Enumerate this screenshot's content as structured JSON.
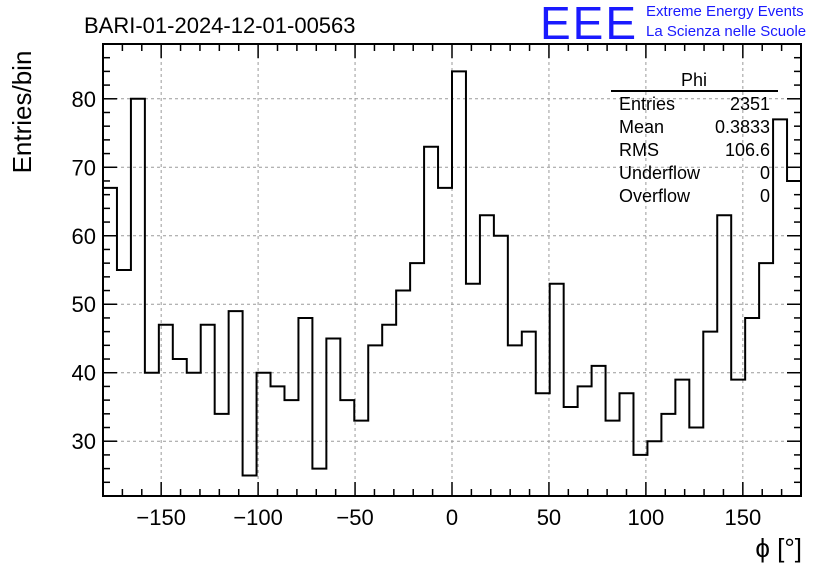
{
  "header": {
    "run_title": "BARI-01-2024-12-01-00563",
    "logo_mark": "EEE",
    "logo_line1": "Extreme Energy Events",
    "logo_line2": "La Scienza nelle Scuole"
  },
  "stats_box": {
    "title": "Phi",
    "rows": [
      {
        "label": "Entries",
        "value": "2351"
      },
      {
        "label": "Mean",
        "value": "0.3833"
      },
      {
        "label": "RMS",
        "value": "106.6"
      },
      {
        "label": "Underflow",
        "value": "0"
      },
      {
        "label": "Overflow",
        "value": "0"
      }
    ]
  },
  "chart_data": {
    "type": "histogram",
    "title": "BARI-01-2024-12-01-00563",
    "xlabel": "ϕ [°]",
    "ylabel": "Entries/bin",
    "xlim": [
      -180,
      180
    ],
    "ylim": [
      22,
      88
    ],
    "bin_width": 7.2,
    "x_ticks": [
      -150,
      -100,
      -50,
      0,
      50,
      100,
      150
    ],
    "x_tick_labels": [
      "−150",
      "−100",
      "−50",
      "0",
      "50",
      "100",
      "150"
    ],
    "y_ticks": [
      30,
      40,
      50,
      60,
      70,
      80
    ],
    "y_tick_labels": [
      "30",
      "40",
      "50",
      "60",
      "70",
      "80"
    ],
    "grid": true,
    "bin_edges": [
      -180,
      -172.8,
      -165.6,
      -158.4,
      -151.2,
      -144,
      -136.8,
      -129.6,
      -122.4,
      -115.2,
      -108,
      -100.8,
      -93.6,
      -86.4,
      -79.2,
      -72,
      -64.8,
      -57.6,
      -50.4,
      -43.2,
      -36,
      -28.8,
      -21.6,
      -14.4,
      -7.2,
      0,
      7.2,
      14.4,
      21.6,
      28.8,
      36,
      43.2,
      50.4,
      57.6,
      64.8,
      72,
      79.2,
      86.4,
      93.6,
      100.8,
      108,
      115.2,
      122.4,
      129.6,
      136.8,
      144,
      151.2,
      158.4,
      165.6,
      172.8,
      180
    ],
    "values": [
      67,
      55,
      80,
      40,
      47,
      42,
      40,
      47,
      34,
      49,
      25,
      40,
      38,
      36,
      48,
      26,
      45,
      36,
      33,
      44,
      47,
      52,
      56,
      73,
      67,
      84,
      53,
      63,
      60,
      44,
      46,
      37,
      53,
      35,
      38,
      41,
      33,
      37,
      28,
      30,
      34,
      39,
      32,
      46,
      63,
      39,
      48,
      56,
      77,
      68
    ]
  },
  "colors": {
    "line": "#000000",
    "grid": "#9a9a9a",
    "logo": "#1a1aff"
  }
}
